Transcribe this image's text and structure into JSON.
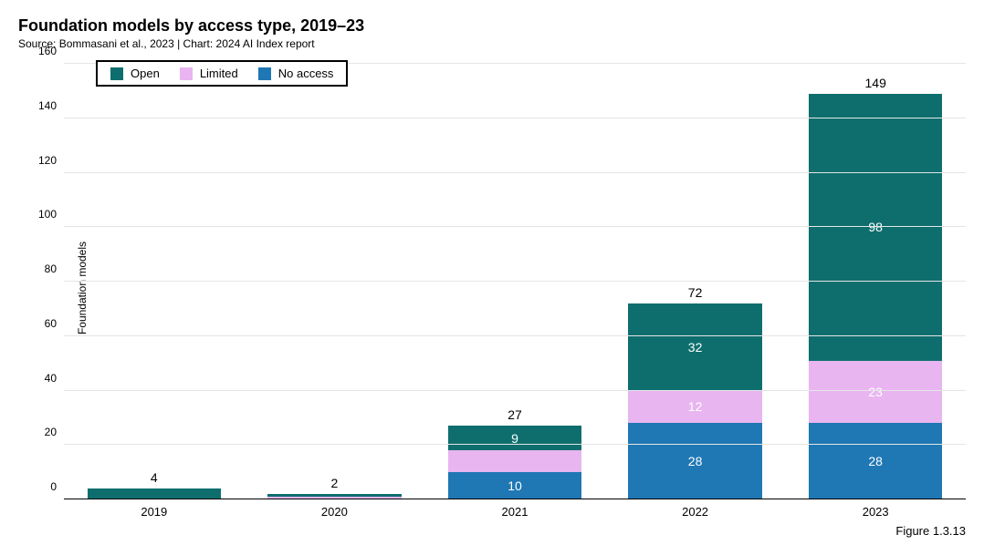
{
  "title": "Foundation models by access type, 2019–23",
  "subtitle": "Source: Bommasani et al., 2023 | Chart: 2024 AI Index report",
  "ylabel": "Foundation models",
  "figure_label": "Figure 1.3.13",
  "chart": {
    "type": "stacked-bar",
    "ylim_max": 160,
    "ytick_step": 20,
    "grid_color": "#e5e5e5",
    "background_color": "#ffffff",
    "categories": [
      "2019",
      "2020",
      "2021",
      "2022",
      "2023"
    ],
    "series": [
      {
        "key": "no_access",
        "label": "No access",
        "color": "#1f77b4"
      },
      {
        "key": "limited",
        "label": "Limited",
        "color": "#e8b5f0"
      },
      {
        "key": "open",
        "label": "Open",
        "color": "#0e6e6e"
      }
    ],
    "data": [
      {
        "total": 4,
        "no_access": 0,
        "limited": 0,
        "open": 4,
        "labels": {
          "no_access": null,
          "limited": null,
          "open": null
        }
      },
      {
        "total": 2,
        "no_access": 0,
        "limited": 1,
        "open": 1,
        "labels": {
          "no_access": null,
          "limited": null,
          "open": null
        }
      },
      {
        "total": 27,
        "no_access": 10,
        "limited": 8,
        "open": 9,
        "labels": {
          "no_access": "10",
          "limited": null,
          "open": "9"
        }
      },
      {
        "total": 72,
        "no_access": 28,
        "limited": 12,
        "open": 32,
        "labels": {
          "no_access": "28",
          "limited": "12",
          "open": "32"
        }
      },
      {
        "total": 149,
        "no_access": 28,
        "limited": 23,
        "open": 98,
        "labels": {
          "no_access": "28",
          "limited": "23",
          "open": "98"
        }
      }
    ],
    "legend": {
      "order": [
        "open",
        "limited",
        "no_access"
      ]
    }
  }
}
